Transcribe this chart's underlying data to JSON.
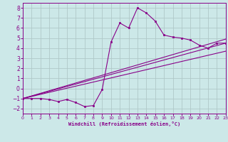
{
  "xlabel": "Windchill (Refroidissement éolien,°C)",
  "background_color": "#cce8e8",
  "grid_color": "#b0c8c8",
  "line_color": "#880088",
  "xlim": [
    0,
    23
  ],
  "ylim": [
    -2.5,
    8.5
  ],
  "xticks": [
    0,
    1,
    2,
    3,
    4,
    5,
    6,
    7,
    8,
    9,
    10,
    11,
    12,
    13,
    14,
    15,
    16,
    17,
    18,
    19,
    20,
    21,
    22,
    23
  ],
  "yticks": [
    -2,
    -1,
    0,
    1,
    2,
    3,
    4,
    5,
    6,
    7,
    8
  ],
  "main_x": [
    0,
    1,
    2,
    3,
    4,
    5,
    6,
    7,
    8,
    9,
    10,
    11,
    12,
    13,
    14,
    15,
    16,
    17,
    18,
    19,
    20,
    21,
    22,
    23
  ],
  "main_y": [
    -1.0,
    -1.0,
    -1.0,
    -1.1,
    -1.3,
    -1.1,
    -1.4,
    -1.8,
    -1.7,
    -0.1,
    4.6,
    6.5,
    6.0,
    8.0,
    7.5,
    6.7,
    5.3,
    5.1,
    5.0,
    4.8,
    4.3,
    4.0,
    4.5,
    4.5
  ],
  "ref_lines": [
    {
      "x0": 0,
      "y0": -1.0,
      "x1": 23,
      "y1": 4.5
    },
    {
      "x0": 0,
      "y0": -1.0,
      "x1": 23,
      "y1": 3.7
    },
    {
      "x0": 0,
      "y0": -1.0,
      "x1": 23,
      "y1": 4.9
    }
  ]
}
